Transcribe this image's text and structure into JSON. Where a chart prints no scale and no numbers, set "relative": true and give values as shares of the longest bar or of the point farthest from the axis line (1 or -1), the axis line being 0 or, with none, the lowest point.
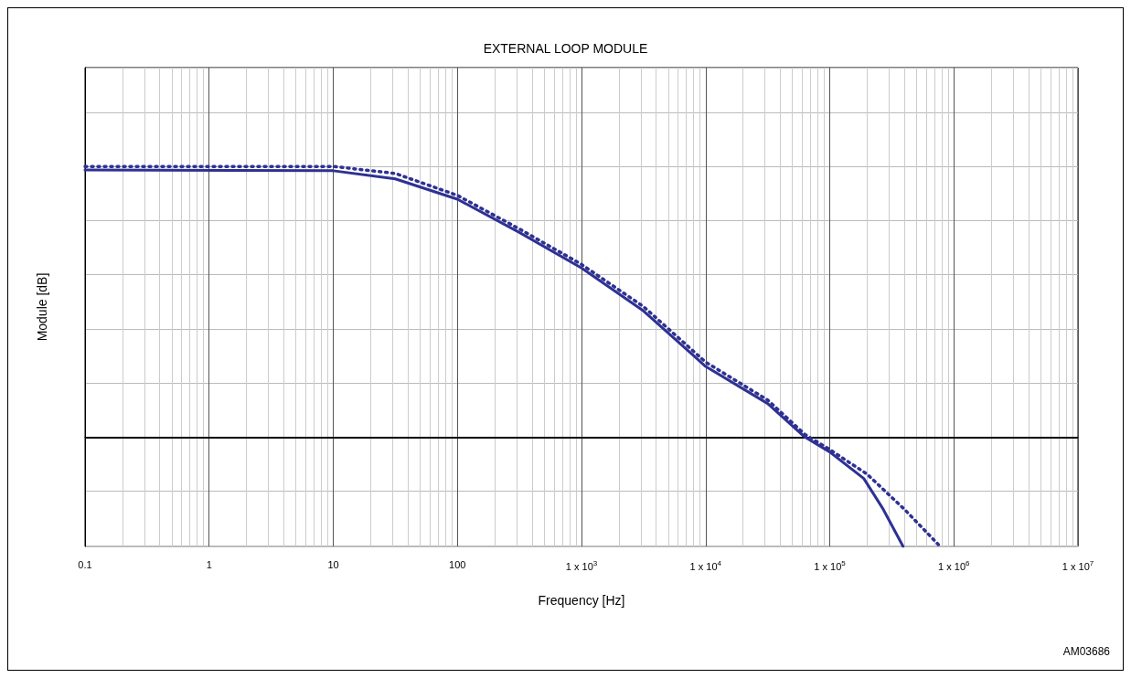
{
  "chart_data": {
    "type": "line",
    "title": "EXTERNAL LOOP MODULE",
    "xlabel": "Frequency [Hz]",
    "ylabel": "Module [dB]",
    "relative": true,
    "log": "x",
    "grid": true,
    "tick_labels": "x",
    "marker": "none",
    "xlim": [
      0.1,
      10000000
    ],
    "xticks": [
      0.1,
      1,
      10,
      100,
      {
        "value": 1000,
        "label": "1 x 10$^{3}$"
      },
      {
        "value": 10000,
        "label": "1 x 10$^{4}$"
      },
      {
        "value": 100000,
        "label": "1 x 10$^{5}$"
      },
      {
        "value": 1000000,
        "label": "1 x 10$^{6}$"
      },
      {
        "value": 10000000,
        "label": "1 x 10$^{7}$"
      }
    ],
    "series": [
      {
        "color": "#2e3192",
        "line_style": "solid",
        "x": [
          0.1,
          10,
          31.6,
          100,
          316,
          1000,
          3160,
          10000,
          31600,
          63000,
          100000,
          188000,
          270000,
          390000
        ],
        "values": [
          0.987,
          0.984,
          0.954,
          0.879,
          0.756,
          0.625,
          0.466,
          0.261,
          0.124,
          0,
          -0.055,
          -0.153,
          -0.267,
          -0.404
        ]
      },
      {
        "color": "#2e3192",
        "line_style": "dotted",
        "x": [
          0.1,
          10,
          31.6,
          100,
          316,
          1000,
          3160,
          10000,
          31600,
          63000,
          100000,
          200000,
          400000,
          750000
        ],
        "values": [
          1,
          1,
          0.974,
          0.893,
          0.769,
          0.638,
          0.482,
          0.277,
          0.137,
          0.01,
          -0.046,
          -0.137,
          -0.267,
          -0.397
        ]
      }
    ],
    "ref_lines": [
      {
        "axis": "y",
        "value": 0,
        "color": "#000000"
      }
    ],
    "annotations": [
      "AM03686"
    ]
  }
}
